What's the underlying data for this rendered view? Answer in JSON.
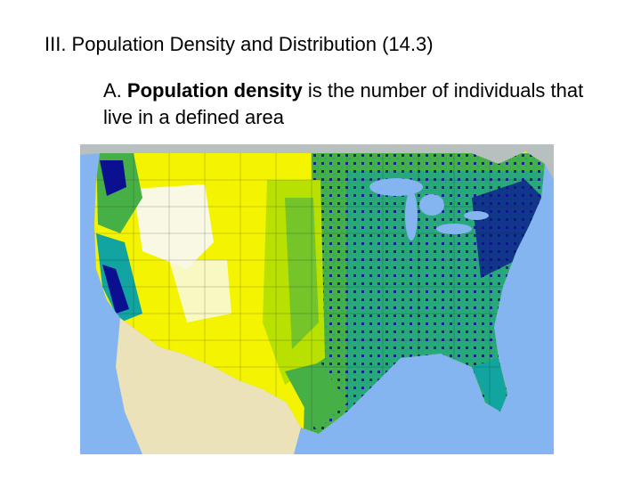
{
  "slide": {
    "heading": "III. Population Density and Distribution (14.3)",
    "bullet": {
      "marker": "A.",
      "term": "Population density",
      "definition": "is the number of individuals that live in a defined area"
    }
  },
  "map": {
    "colors": {
      "water": "#85b5f0",
      "canada": "#b7bfbf",
      "mexico": "#ece2b9",
      "sparse": "#f8f8e4",
      "low": "#f4f400",
      "low_mid": "#b8e000",
      "mid": "#46b046",
      "high": "#12a4a0",
      "highest": "#0a1090"
    }
  }
}
